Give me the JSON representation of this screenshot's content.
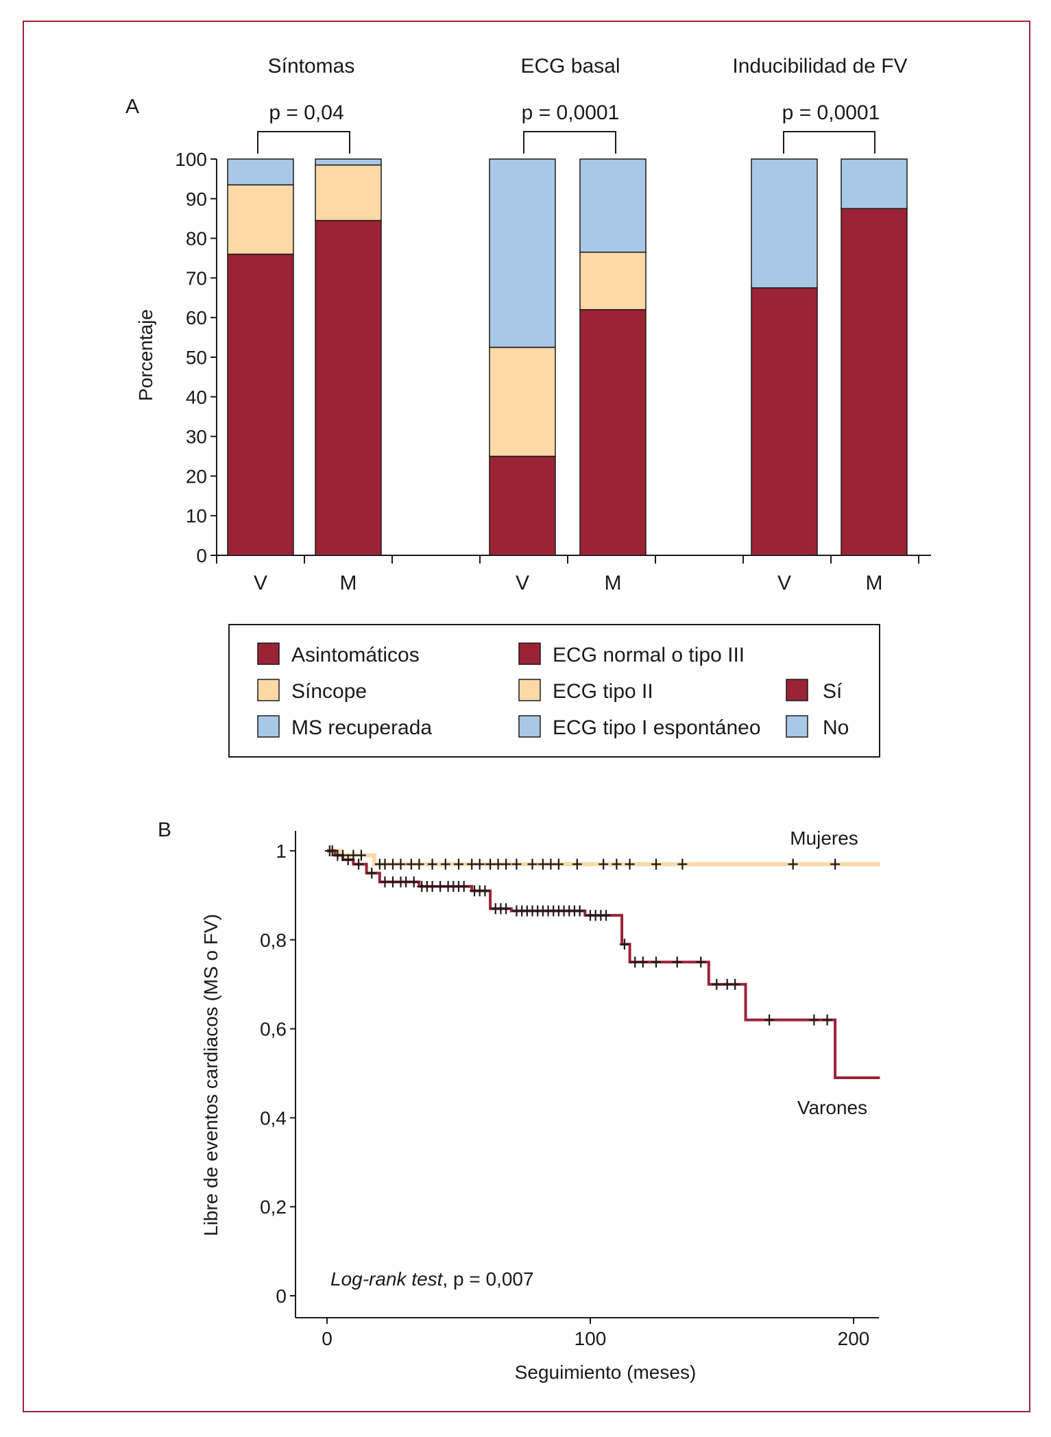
{
  "colors": {
    "dark_red": "#9b2335",
    "peach": "#fcd9a7",
    "light_blue": "#a8c8e6",
    "frame": "#9b2335",
    "axis": "#1a1a1a"
  },
  "panel_a": {
    "label": "A",
    "ylabel": "Porcentaje",
    "yticks": [
      "0",
      "10",
      "20",
      "30",
      "40",
      "50",
      "60",
      "70",
      "80",
      "90",
      "100"
    ],
    "groups": [
      {
        "title": "Síntomas",
        "pvalue": "p = 0,04"
      },
      {
        "title": "ECG basal",
        "pvalue": "p = 0,0001"
      },
      {
        "title": "Inducibilidad de FV",
        "pvalue": "p = 0,0001"
      }
    ],
    "legend": {
      "col1": [
        "Asintomáticos",
        "Síncope",
        "MS recuperada"
      ],
      "col2": [
        "ECG normal o tipo III",
        "ECG tipo II",
        "ECG tipo I espontáneo"
      ],
      "col3": [
        "Sí",
        "No"
      ]
    }
  },
  "panel_b": {
    "label": "B",
    "ylabel": "Libre de eventos cardiacos (MS o FV)",
    "xlabel": "Seguimiento (meses)",
    "xticks": [
      "0",
      "100",
      "200"
    ],
    "yticks": [
      "0",
      "0,2",
      "0,4",
      "0,6",
      "0,8",
      "1"
    ],
    "curve_labels": {
      "women": "Mujeres",
      "men": "Varones"
    },
    "annotation_italic": "Log-rank test",
    "annotation_rest": ", p = 0,007"
  },
  "chart_data": [
    {
      "type": "bar",
      "stacked": true,
      "ylabel": "Porcentaje",
      "ylim": [
        0,
        100
      ],
      "groups": [
        {
          "title": "Síntomas",
          "pvalue": "p = 0,04",
          "categories": [
            "V",
            "M"
          ],
          "series": [
            {
              "name": "Asintomáticos",
              "values": [
                76,
                84.5
              ]
            },
            {
              "name": "Síncope",
              "values": [
                17.5,
                14
              ]
            },
            {
              "name": "MS recuperada",
              "values": [
                6.5,
                1.5
              ]
            }
          ]
        },
        {
          "title": "ECG basal",
          "pvalue": "p = 0,0001",
          "categories": [
            "V",
            "M"
          ],
          "series": [
            {
              "name": "ECG normal o tipo III",
              "values": [
                25,
                62
              ]
            },
            {
              "name": "ECG tipo II",
              "values": [
                27.5,
                14.5
              ]
            },
            {
              "name": "ECG tipo I espontáneo",
              "values": [
                47.5,
                23.5
              ]
            }
          ]
        },
        {
          "title": "Inducibilidad de FV",
          "pvalue": "p = 0,0001",
          "categories": [
            "V",
            "M"
          ],
          "series": [
            {
              "name": "Sí",
              "values": [
                67.5,
                87.5
              ]
            },
            {
              "name": "No",
              "values": [
                32.5,
                12.5
              ]
            }
          ]
        }
      ]
    },
    {
      "type": "line",
      "subtype": "kaplan-meier",
      "xlabel": "Seguimiento (meses)",
      "ylabel": "Libre de eventos cardiacos (MS o FV)",
      "xlim": [
        0,
        210
      ],
      "ylim": [
        0,
        1
      ],
      "annotation": "Log-rank test, p = 0,007",
      "series": [
        {
          "name": "Mujeres",
          "steps": [
            [
              0,
              1
            ],
            [
              5,
              0.99
            ],
            [
              18,
              0.97
            ],
            [
              210,
              0.97
            ]
          ],
          "censored": [
            [
              2,
              1
            ],
            [
              6,
              0.99
            ],
            [
              10,
              0.99
            ],
            [
              13,
              0.99
            ],
            [
              20,
              0.97
            ],
            [
              22,
              0.97
            ],
            [
              25,
              0.97
            ],
            [
              28,
              0.97
            ],
            [
              32,
              0.97
            ],
            [
              35,
              0.97
            ],
            [
              40,
              0.97
            ],
            [
              45,
              0.97
            ],
            [
              50,
              0.97
            ],
            [
              55,
              0.97
            ],
            [
              58,
              0.97
            ],
            [
              62,
              0.97
            ],
            [
              65,
              0.97
            ],
            [
              68,
              0.97
            ],
            [
              72,
              0.97
            ],
            [
              78,
              0.97
            ],
            [
              82,
              0.97
            ],
            [
              85,
              0.97
            ],
            [
              88,
              0.97
            ],
            [
              95,
              0.97
            ],
            [
              105,
              0.97
            ],
            [
              110,
              0.97
            ],
            [
              115,
              0.97
            ],
            [
              125,
              0.97
            ],
            [
              135,
              0.97
            ],
            [
              177,
              0.97
            ],
            [
              193,
              0.97
            ]
          ]
        },
        {
          "name": "Varones",
          "steps": [
            [
              0,
              1
            ],
            [
              3,
              0.99
            ],
            [
              6,
              0.98
            ],
            [
              10,
              0.97
            ],
            [
              15,
              0.95
            ],
            [
              20,
              0.93
            ],
            [
              35,
              0.92
            ],
            [
              55,
              0.91
            ],
            [
              62,
              0.87
            ],
            [
              70,
              0.865
            ],
            [
              98,
              0.855
            ],
            [
              112,
              0.79
            ],
            [
              115,
              0.75
            ],
            [
              145,
              0.7
            ],
            [
              159,
              0.62
            ],
            [
              193,
              0.49
            ],
            [
              210,
              0.49
            ]
          ],
          "censored": [
            [
              1,
              1
            ],
            [
              4,
              0.99
            ],
            [
              8,
              0.98
            ],
            [
              12,
              0.97
            ],
            [
              17,
              0.95
            ],
            [
              22,
              0.93
            ],
            [
              25,
              0.93
            ],
            [
              28,
              0.93
            ],
            [
              30,
              0.93
            ],
            [
              33,
              0.93
            ],
            [
              36,
              0.92
            ],
            [
              38,
              0.92
            ],
            [
              40,
              0.92
            ],
            [
              43,
              0.92
            ],
            [
              46,
              0.92
            ],
            [
              48,
              0.92
            ],
            [
              50,
              0.92
            ],
            [
              52,
              0.92
            ],
            [
              56,
              0.91
            ],
            [
              58,
              0.91
            ],
            [
              60,
              0.91
            ],
            [
              64,
              0.87
            ],
            [
              66,
              0.87
            ],
            [
              68,
              0.87
            ],
            [
              72,
              0.865
            ],
            [
              74,
              0.865
            ],
            [
              76,
              0.865
            ],
            [
              78,
              0.865
            ],
            [
              80,
              0.865
            ],
            [
              82,
              0.865
            ],
            [
              84,
              0.865
            ],
            [
              86,
              0.865
            ],
            [
              88,
              0.865
            ],
            [
              90,
              0.865
            ],
            [
              92,
              0.865
            ],
            [
              94,
              0.865
            ],
            [
              96,
              0.865
            ],
            [
              100,
              0.855
            ],
            [
              102,
              0.855
            ],
            [
              104,
              0.855
            ],
            [
              106,
              0.855
            ],
            [
              113,
              0.79
            ],
            [
              117,
              0.75
            ],
            [
              120,
              0.75
            ],
            [
              125,
              0.75
            ],
            [
              133,
              0.75
            ],
            [
              142,
              0.75
            ],
            [
              148,
              0.7
            ],
            [
              152,
              0.7
            ],
            [
              155,
              0.7
            ],
            [
              168,
              0.62
            ],
            [
              185,
              0.62
            ],
            [
              190,
              0.62
            ]
          ]
        }
      ]
    }
  ]
}
